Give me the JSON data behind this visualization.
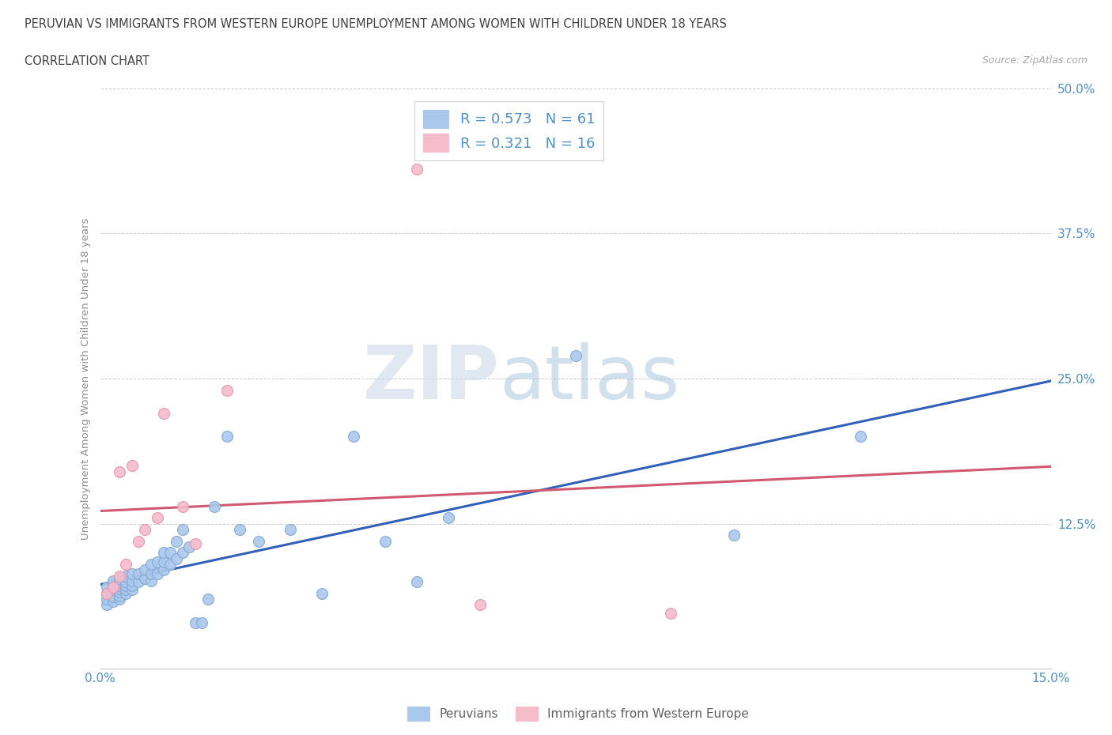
{
  "title_line1": "PERUVIAN VS IMMIGRANTS FROM WESTERN EUROPE UNEMPLOYMENT AMONG WOMEN WITH CHILDREN UNDER 18 YEARS",
  "title_line2": "CORRELATION CHART",
  "source": "Source: ZipAtlas.com",
  "ylabel": "Unemployment Among Women with Children Under 18 years",
  "xlim": [
    0.0,
    0.15
  ],
  "ylim": [
    0.0,
    0.5
  ],
  "yticks": [
    0.0,
    0.125,
    0.25,
    0.375,
    0.5
  ],
  "yticklabels": [
    "",
    "12.5%",
    "25.0%",
    "37.5%",
    "50.0%"
  ],
  "blue_color": "#aac8ec",
  "blue_edge": "#88aad8",
  "pink_color": "#f5bccb",
  "pink_edge": "#e898ae",
  "line_blue": "#3060b8",
  "line_pink": "#d05870",
  "watermark_zip": "ZIP",
  "watermark_atlas": "atlas",
  "R_blue": 0.573,
  "N_blue": 61,
  "R_pink": 0.321,
  "N_pink": 16,
  "legend_label_blue": "Peruvians",
  "legend_label_pink": "Immigrants from Western Europe",
  "blue_x": [
    0.001,
    0.001,
    0.001,
    0.001,
    0.002,
    0.002,
    0.002,
    0.002,
    0.002,
    0.002,
    0.003,
    0.003,
    0.003,
    0.003,
    0.003,
    0.003,
    0.003,
    0.004,
    0.004,
    0.004,
    0.004,
    0.004,
    0.005,
    0.005,
    0.005,
    0.005,
    0.006,
    0.006,
    0.007,
    0.007,
    0.008,
    0.008,
    0.008,
    0.009,
    0.009,
    0.01,
    0.01,
    0.01,
    0.011,
    0.011,
    0.012,
    0.012,
    0.013,
    0.013,
    0.014,
    0.015,
    0.016,
    0.017,
    0.018,
    0.02,
    0.022,
    0.025,
    0.03,
    0.035,
    0.04,
    0.045,
    0.05,
    0.055,
    0.075,
    0.1,
    0.12
  ],
  "blue_y": [
    0.055,
    0.06,
    0.065,
    0.07,
    0.058,
    0.062,
    0.068,
    0.07,
    0.073,
    0.076,
    0.06,
    0.063,
    0.066,
    0.069,
    0.072,
    0.075,
    0.078,
    0.065,
    0.068,
    0.072,
    0.075,
    0.08,
    0.068,
    0.072,
    0.076,
    0.082,
    0.075,
    0.082,
    0.078,
    0.085,
    0.076,
    0.082,
    0.09,
    0.082,
    0.092,
    0.085,
    0.092,
    0.1,
    0.09,
    0.1,
    0.095,
    0.11,
    0.1,
    0.12,
    0.105,
    0.04,
    0.04,
    0.06,
    0.14,
    0.2,
    0.12,
    0.11,
    0.12,
    0.065,
    0.2,
    0.11,
    0.075,
    0.13,
    0.27,
    0.115,
    0.2
  ],
  "pink_x": [
    0.001,
    0.002,
    0.003,
    0.003,
    0.004,
    0.005,
    0.006,
    0.007,
    0.009,
    0.01,
    0.013,
    0.015,
    0.02,
    0.05,
    0.06,
    0.09
  ],
  "pink_y": [
    0.065,
    0.07,
    0.08,
    0.17,
    0.09,
    0.175,
    0.11,
    0.12,
    0.13,
    0.22,
    0.14,
    0.108,
    0.24,
    0.43,
    0.055,
    0.048
  ],
  "grid_color": "#cccccc",
  "background_color": "#ffffff",
  "title_color": "#404040",
  "axis_label_color": "#909090",
  "tick_label_color": "#5090c8"
}
